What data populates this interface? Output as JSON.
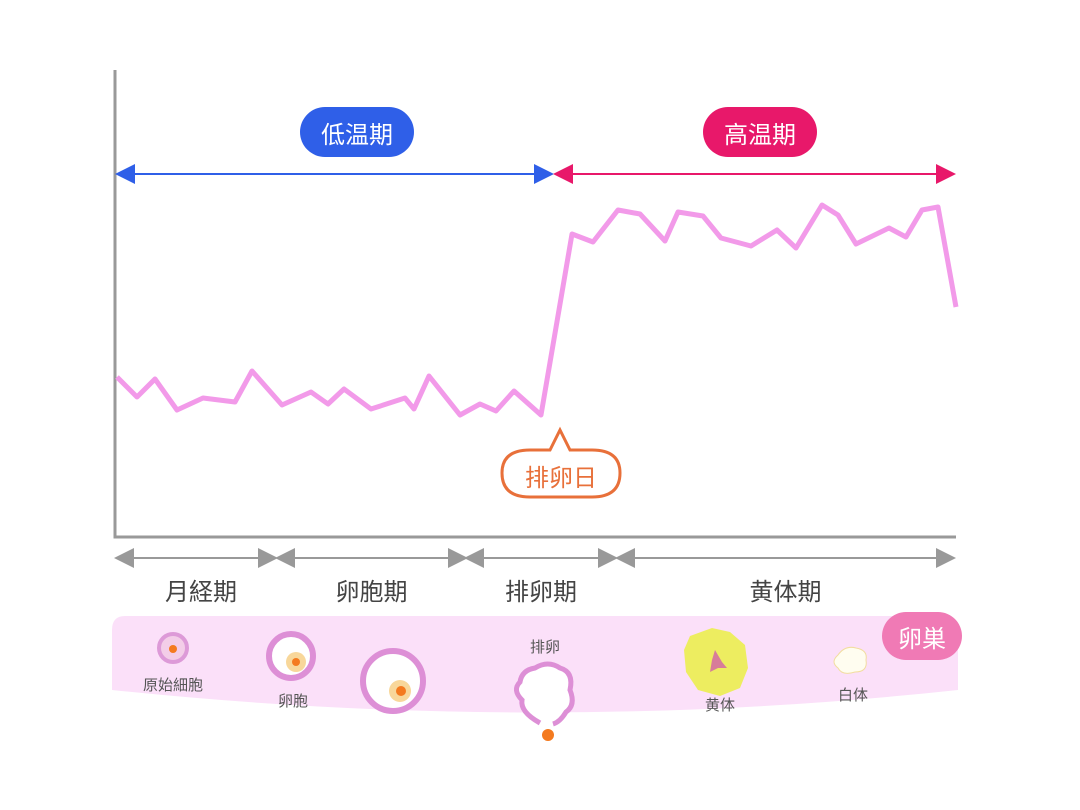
{
  "temperature_phases": {
    "low": "低温期",
    "high": "高温期",
    "low_color": "#2f5fe8",
    "high_color": "#e8186a"
  },
  "ovulation_day": "排卵日",
  "line_color": "#f29ae9",
  "cycle_phases": [
    "月経期",
    "卵胞期",
    "排卵期",
    "黄体期"
  ],
  "ovary": {
    "title": "卵巣",
    "stages": [
      "原始細胞",
      "卵胞",
      "排卵",
      "黄体",
      "白体"
    ]
  }
}
